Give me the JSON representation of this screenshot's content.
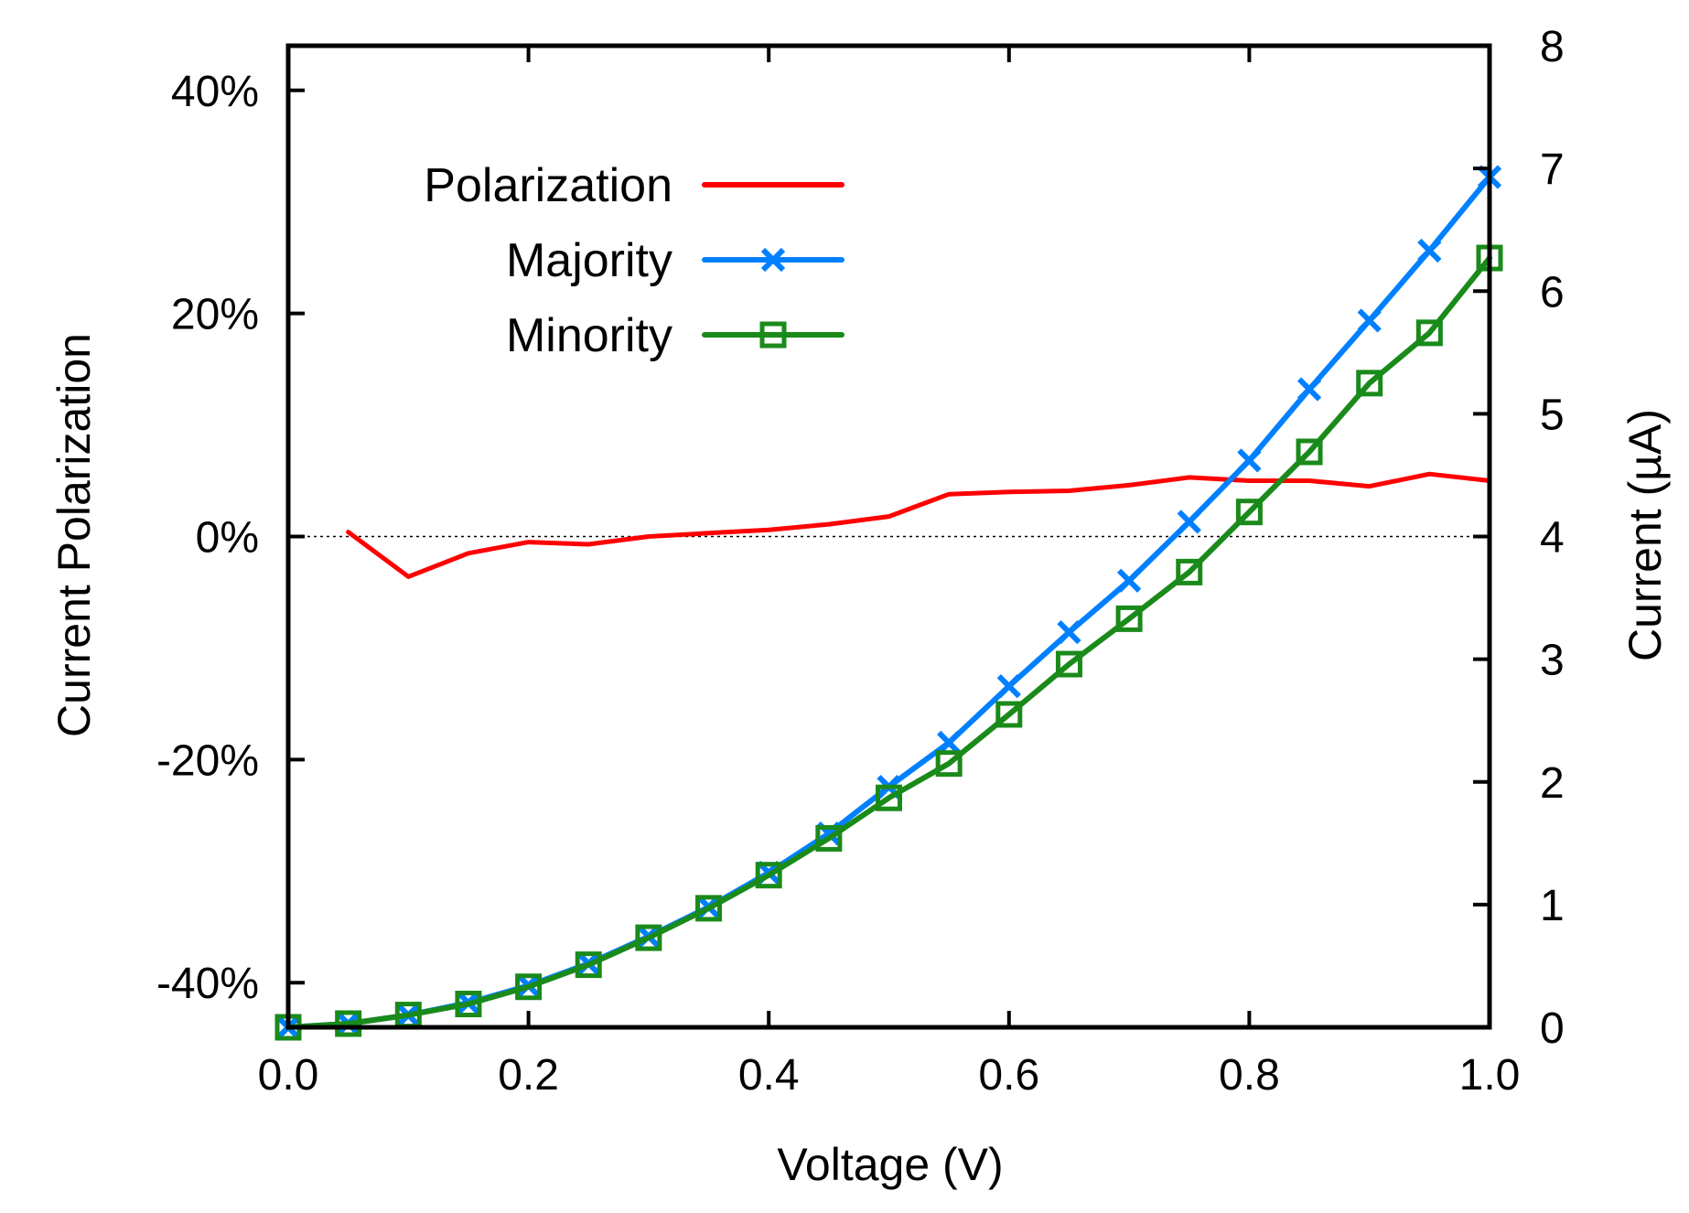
{
  "chart_data": {
    "type": "line",
    "xlabel": "Voltage (V)",
    "ylabel_left": "Current Polarization",
    "ylabel_right": "Current (µA)",
    "xlim": [
      0.0,
      1.0
    ],
    "ylim_left": [
      -0.44,
      0.44
    ],
    "ylim_right": [
      0,
      8
    ],
    "x_ticks": [
      0.0,
      0.2,
      0.4,
      0.6,
      0.8,
      1.0
    ],
    "x_tick_labels": [
      "0.0",
      "0.2",
      "0.4",
      "0.6",
      "0.8",
      "1.0"
    ],
    "y_left_ticks": [
      -0.4,
      -0.2,
      0.0,
      0.2,
      0.4
    ],
    "y_left_tick_labels": [
      "-40%",
      "-20%",
      "0%",
      "20%",
      "40%"
    ],
    "y_right_ticks": [
      0,
      1,
      2,
      3,
      4,
      5,
      6,
      7,
      8
    ],
    "y_right_tick_labels": [
      "0",
      "1",
      "2",
      "3",
      "4",
      "5",
      "6",
      "7",
      "8"
    ],
    "zero_line": true,
    "legend_position": "top-left",
    "colors": {
      "polarization": "#ff0000",
      "majority": "#0080ff",
      "minority": "#1a8a1a",
      "axis": "#000000"
    },
    "series": [
      {
        "name": "Polarization",
        "axis": "left",
        "marker": "none",
        "x": [
          0.05,
          0.1,
          0.15,
          0.2,
          0.25,
          0.3,
          0.35,
          0.4,
          0.45,
          0.5,
          0.55,
          0.6,
          0.65,
          0.7,
          0.75,
          0.8,
          0.85,
          0.9,
          0.95,
          1.0
        ],
        "values": [
          0.004,
          -0.036,
          -0.015,
          -0.005,
          -0.007,
          0.0,
          0.003,
          0.006,
          0.011,
          0.018,
          0.038,
          0.04,
          0.041,
          0.046,
          0.053,
          0.05,
          0.05,
          0.045,
          0.056,
          0.05
        ]
      },
      {
        "name": "Majority",
        "axis": "right",
        "marker": "cross",
        "x": [
          0.0,
          0.05,
          0.1,
          0.15,
          0.2,
          0.25,
          0.3,
          0.35,
          0.4,
          0.45,
          0.5,
          0.55,
          0.6,
          0.65,
          0.7,
          0.75,
          0.8,
          0.85,
          0.9,
          0.95,
          1.0
        ],
        "values": [
          0.0,
          0.03,
          0.1,
          0.2,
          0.34,
          0.52,
          0.74,
          0.98,
          1.26,
          1.58,
          1.96,
          2.32,
          2.78,
          3.22,
          3.64,
          4.12,
          4.62,
          5.2,
          5.76,
          6.33,
          6.93
        ]
      },
      {
        "name": "Minority",
        "axis": "right",
        "marker": "square",
        "x": [
          0.0,
          0.05,
          0.1,
          0.15,
          0.2,
          0.25,
          0.3,
          0.35,
          0.4,
          0.45,
          0.5,
          0.55,
          0.6,
          0.65,
          0.7,
          0.75,
          0.8,
          0.85,
          0.9,
          0.95,
          1.0
        ],
        "values": [
          0.0,
          0.03,
          0.1,
          0.19,
          0.33,
          0.51,
          0.73,
          0.97,
          1.24,
          1.54,
          1.87,
          2.15,
          2.55,
          2.96,
          3.33,
          3.71,
          4.2,
          4.69,
          5.25,
          5.66,
          6.27
        ]
      }
    ]
  }
}
